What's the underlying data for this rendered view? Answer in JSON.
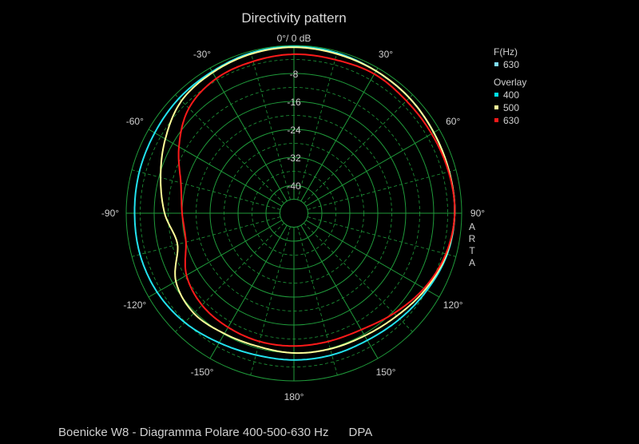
{
  "caption": "Boenicke W8 - Diagramma Polare 400-500-630 Hz      DPA",
  "chart_data": {
    "type": "polar",
    "title": "Directivity pattern",
    "top_label": "0°/ 0 dB",
    "watermark": "ARTA",
    "radial_range_db": [
      -48,
      0
    ],
    "radial_tick_labels": [
      "-8",
      "-16",
      "-24",
      "-32",
      "-40"
    ],
    "angle_tick_labels": [
      {
        "label": "30°",
        "angle": 30
      },
      {
        "label": "60°",
        "angle": 60
      },
      {
        "label": "90°",
        "angle": 90
      },
      {
        "label": "120°",
        "angle": 120
      },
      {
        "label": "150°",
        "angle": 150
      },
      {
        "label": "180°",
        "angle": 180
      },
      {
        "label": "-150°",
        "angle": -150
      },
      {
        "label": "-120°",
        "angle": -120
      },
      {
        "label": "-90°",
        "angle": -90
      },
      {
        "label": "-60°",
        "angle": -60
      },
      {
        "label": "-30°",
        "angle": -30
      }
    ],
    "grid": true,
    "legend": {
      "position": "top-right",
      "header": "F(Hz)",
      "current": {
        "label": "630",
        "color": "#7fdfff"
      },
      "overlay_header": "Overlay",
      "overlay": [
        {
          "label": "400",
          "color": "#00e5f0"
        },
        {
          "label": "500",
          "color": "#ffff99"
        },
        {
          "label": "630",
          "color": "#ff1a1a"
        }
      ]
    },
    "angles": [
      0,
      15,
      30,
      45,
      60,
      75,
      90,
      105,
      120,
      135,
      150,
      165,
      180,
      -165,
      -150,
      -135,
      -120,
      -105,
      -90,
      -75,
      -60,
      -45,
      -30,
      -15
    ],
    "series": [
      {
        "name": "400",
        "color": "#22e2ee",
        "values": [
          -0.3,
          -0.5,
          -1.0,
          -1.3,
          -1.8,
          -2.0,
          -2.0,
          -2.6,
          -4.0,
          -5.2,
          -6.0,
          -6.0,
          -6.0,
          -6.0,
          -5.2,
          -3.8,
          -2.8,
          -2.4,
          -2.4,
          -2.2,
          -2.0,
          -1.5,
          -1.2,
          -0.5
        ]
      },
      {
        "name": "500",
        "color": "#ffff99",
        "values": [
          -0.5,
          -0.8,
          -1.0,
          -1.3,
          -1.8,
          -2.0,
          -2.0,
          -2.8,
          -4.5,
          -6.4,
          -7.5,
          -7.8,
          -8.0,
          -8.5,
          -8.2,
          -7.5,
          -9.0,
          -13.5,
          -11.0,
          -8.5,
          -5.5,
          -2.5,
          -1.5,
          -0.8
        ]
      },
      {
        "name": "630",
        "color": "#ff1a1a",
        "values": [
          -2.5,
          -2.5,
          -2.0,
          -2.5,
          -2.5,
          -2.2,
          -2.0,
          -3.0,
          -5.0,
          -7.5,
          -9.5,
          -10.0,
          -10.0,
          -10.0,
          -10.3,
          -10.8,
          -12.5,
          -16.0,
          -16.0,
          -14.5,
          -10.0,
          -5.5,
          -3.5,
          -3.0
        ]
      }
    ]
  }
}
